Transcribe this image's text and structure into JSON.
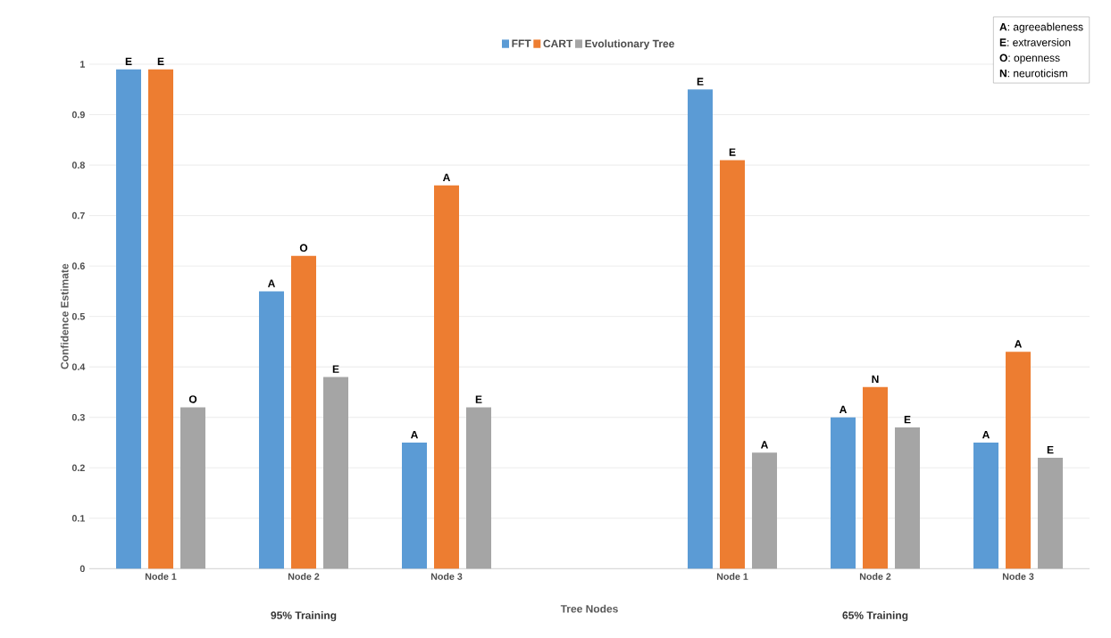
{
  "chart_data": {
    "type": "bar",
    "xlabel": "Tree Nodes",
    "ylabel": "Confidence Estimate",
    "categories": [
      "Node 1",
      "Node 2",
      "Node 3",
      null,
      "Node 1",
      "Node 2",
      "Node 3"
    ],
    "series": [
      {
        "name": "FFT",
        "color": "#5b9bd5",
        "values": [
          0.99,
          0.55,
          0.25,
          null,
          0.95,
          0.3,
          0.25
        ],
        "value_labels": [
          "E",
          "A",
          "A",
          null,
          "E",
          "A",
          "A"
        ]
      },
      {
        "name": "CART",
        "color": "#ed7d31",
        "values": [
          0.99,
          0.62,
          0.76,
          null,
          0.81,
          0.36,
          0.43
        ],
        "value_labels": [
          "E",
          "O",
          "A",
          null,
          "E",
          "N",
          "A"
        ]
      },
      {
        "name": "Evolutionary Tree",
        "color": "#a5a5a5",
        "values": [
          0.32,
          0.38,
          0.32,
          null,
          0.23,
          0.28,
          0.22
        ],
        "value_labels": [
          "O",
          "E",
          "E",
          null,
          "A",
          "E",
          "E"
        ]
      }
    ],
    "ylim": [
      0,
      1
    ],
    "yticks": [
      0,
      0.1,
      0.2,
      0.3,
      0.4,
      0.5,
      0.6,
      0.7,
      0.8,
      0.9,
      1
    ],
    "grid": "y",
    "legend": "top",
    "annotations": [
      "95% Training",
      "65% Training",
      "**A**: agreeableness",
      "**E**: extraversion",
      "**O**: openness",
      "**N**: neuroticism"
    ]
  }
}
